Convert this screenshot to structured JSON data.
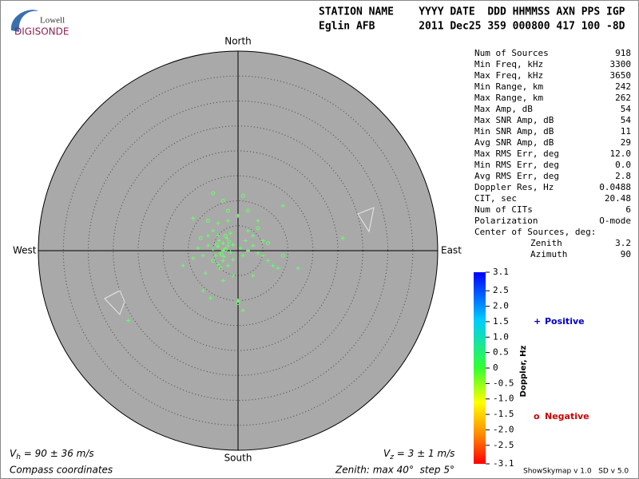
{
  "logo": {
    "line1": "Lowell",
    "line2": "DIGISONDE"
  },
  "header": {
    "names": "STATION NAME    YYYY DATE  DDD HHMMSS AXN PPS IGP",
    "values": "Eglin AFB       2011 Dec25 359 000800 417 100 -8D"
  },
  "stats": [
    [
      "Num of Sources",
      "918"
    ],
    [
      "Min Freq, kHz",
      "3300"
    ],
    [
      "Max Freq, kHz",
      "3650"
    ],
    [
      "Min Range, km",
      "242"
    ],
    [
      "Max Range, km",
      "262"
    ],
    [
      "Max Amp, dB",
      "54"
    ],
    [
      "Max SNR Amp, dB",
      "54"
    ],
    [
      "Min SNR Amp, dB",
      "11"
    ],
    [
      "Avg SNR Amp, dB",
      "29"
    ],
    [
      "Max RMS Err, deg",
      "12.0"
    ],
    [
      "Min RMS Err, deg",
      "0.0"
    ],
    [
      "Avg RMS Err, deg",
      "2.8"
    ],
    [
      "Doppler Res, Hz",
      "0.0488"
    ],
    [
      "CIT, sec",
      "20.48"
    ],
    [
      "Num of CITs",
      "6"
    ],
    [
      "Polarization",
      "O-mode"
    ],
    [
      "Center of Sources, deg:",
      ""
    ]
  ],
  "center": [
    [
      "Zenith",
      "3.2"
    ],
    [
      "Azimuth",
      "90"
    ]
  ],
  "footer": {
    "vh": {
      "symbol": "V",
      "sub": "h",
      "text": " = 90 ± 36 m/s"
    },
    "vz": {
      "symbol": "V",
      "sub": "z",
      "text": " = 3 ± 1 m/s"
    },
    "coords": "Compass coordinates",
    "zenith": "Zenith: max 40°  step 5°",
    "version": "ShowSkymap v 1.0   SD v 5.0"
  },
  "chart_data": {
    "type": "skymap",
    "directions": {
      "north": "North",
      "south": "South",
      "east": "East",
      "west": "West"
    },
    "rlim": [
      0,
      40
    ],
    "rticks": [
      5,
      10,
      15,
      20,
      25,
      30,
      35
    ],
    "series": [
      {
        "name": "Positive",
        "symbol": "+",
        "color": "#0000cc",
        "marker_color": "#66ff66",
        "x": [
          -3,
          -2.5,
          -3.5,
          -2,
          -4,
          -3,
          -2.8,
          -1.5,
          -4.5,
          -3.8,
          -2.2,
          -1,
          -5,
          -6,
          -3,
          -2,
          -4,
          -1,
          0.5,
          1,
          2,
          3,
          4,
          5,
          -7,
          -8,
          -9,
          -6,
          -5,
          -4,
          -2,
          0,
          2,
          3,
          5,
          6,
          7,
          -9,
          -7,
          -5.5,
          0,
          1,
          -11,
          21,
          -22,
          12,
          8,
          -1,
          -3,
          3,
          -6.5,
          1.5,
          4,
          9,
          -4,
          -1.5
        ],
        "y": [
          0,
          0.5,
          -0.5,
          1,
          0.8,
          1.5,
          -1.2,
          -0.3,
          -1,
          2,
          2.5,
          1.2,
          0.2,
          1,
          -2,
          -3,
          -2.8,
          -1.8,
          0.5,
          -1,
          0,
          1,
          -0.5,
          -1,
          -1,
          0.5,
          -1.5,
          3,
          4,
          5.5,
          6,
          7,
          4,
          3,
          2,
          -2,
          -3,
          6.5,
          -8,
          -9.5,
          -10,
          -12,
          -3,
          2.5,
          -14,
          -3.5,
          -3.5,
          -5,
          -6,
          -5,
          -4.5,
          2,
          6,
          9,
          3,
          3.5
        ]
      },
      {
        "name": "Negative",
        "symbol": "o",
        "color": "#cc0000",
        "marker_color": "#66ff66",
        "x": [
          -2.5,
          -3.3,
          -1.8,
          -4.2,
          -5,
          -3,
          -5,
          1,
          2,
          -2,
          -6,
          9,
          -7.5,
          0,
          4,
          -3.5,
          -2.5,
          6
        ],
        "y": [
          0.2,
          -0.8,
          1.8,
          1.2,
          -2,
          10,
          11.5,
          11,
          8,
          8,
          6,
          -1,
          2.5,
          -10.5,
          4.5,
          -3.5,
          3,
          1.5
        ]
      }
    ],
    "colorbar": {
      "label": "Doppler, Hz",
      "lim": [
        -3.1,
        3.1
      ],
      "ticks": [
        3.1,
        2.5,
        {
          "value": 2,
          "label": "2.0"
        },
        1.5,
        {
          "value": 1,
          "label": "1.0"
        },
        0.5,
        0,
        -0.5,
        {
          "value": -1,
          "label": "-1.0"
        },
        -1.5,
        {
          "value": -2,
          "label": "-2.0"
        },
        -2.5,
        -3.1
      ]
    }
  }
}
